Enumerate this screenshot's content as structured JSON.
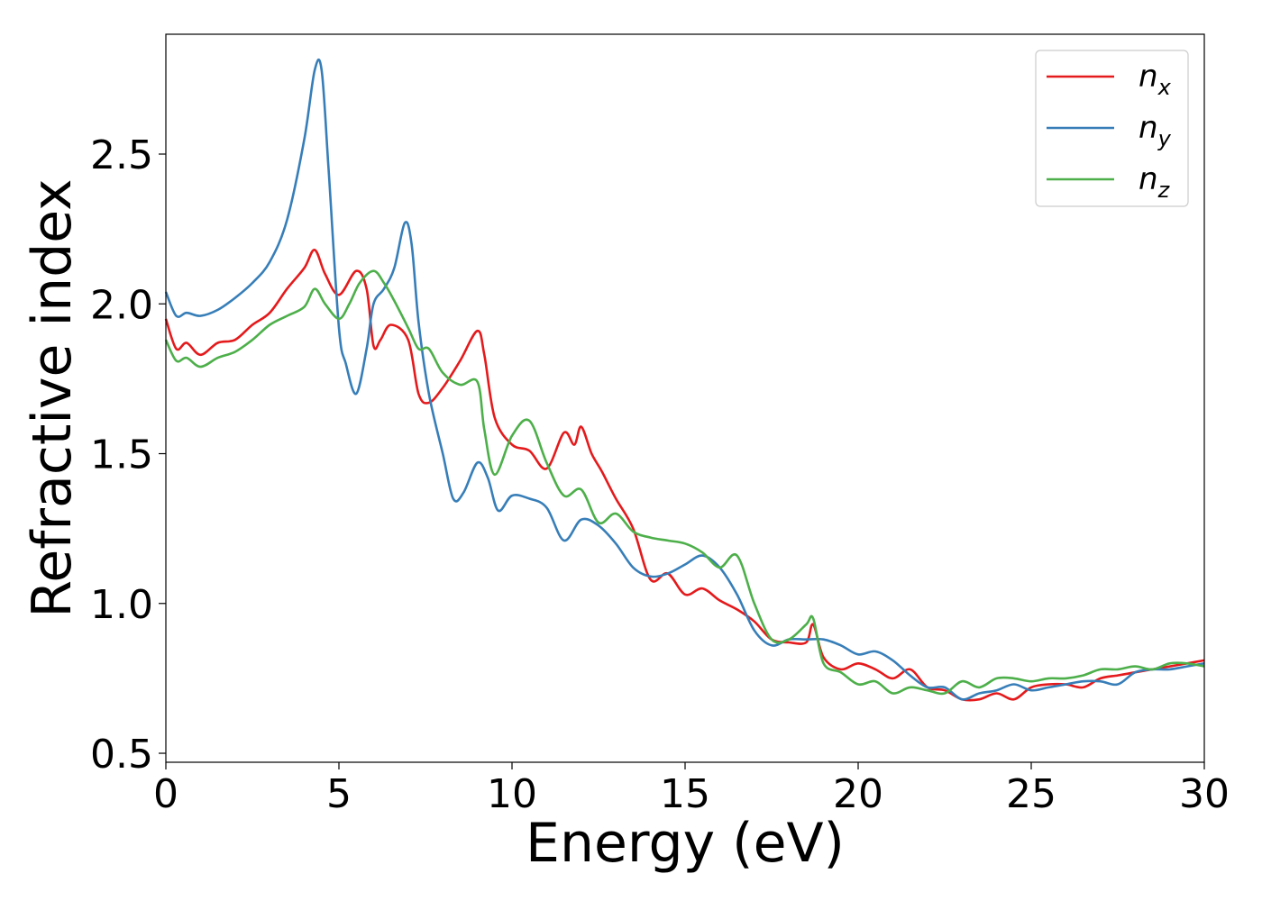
{
  "chart_data": {
    "type": "line",
    "title": "",
    "xlabel": "Energy (eV)",
    "ylabel": "Refractive index",
    "xlim": [
      0,
      30
    ],
    "ylim": [
      0.47,
      2.9
    ],
    "xticks": [
      0,
      5,
      10,
      15,
      20,
      25,
      30
    ],
    "xtick_labels": [
      "0",
      "5",
      "10",
      "15",
      "20",
      "25",
      "30"
    ],
    "yticks": [
      0.5,
      1.0,
      1.5,
      2.0,
      2.5
    ],
    "ytick_labels": [
      "0.5",
      "1.0",
      "1.5",
      "2.0",
      "2.5"
    ],
    "grid": false,
    "legend_position": "top-right",
    "series": [
      {
        "name": "n_x",
        "label_main": "n",
        "label_sub": "x",
        "color": "#e41a1c",
        "x": [
          0,
          0.3,
          0.6,
          1.0,
          1.5,
          2.0,
          2.5,
          3.0,
          3.5,
          4.0,
          4.3,
          4.6,
          5.0,
          5.5,
          5.8,
          6.0,
          6.2,
          6.5,
          7.0,
          7.3,
          7.6,
          8.0,
          8.5,
          9.0,
          9.2,
          9.5,
          10.0,
          10.5,
          11.0,
          11.5,
          11.8,
          12.0,
          12.3,
          12.6,
          13.0,
          13.5,
          14.0,
          14.5,
          15.0,
          15.5,
          16.0,
          16.5,
          17.0,
          17.5,
          18.0,
          18.5,
          18.7,
          19.0,
          19.5,
          20.0,
          20.5,
          21.0,
          21.5,
          22.0,
          22.5,
          23.0,
          23.5,
          24.0,
          24.5,
          25.0,
          25.5,
          26.0,
          26.5,
          27.0,
          27.5,
          28.0,
          28.5,
          29.0,
          29.5,
          30.0
        ],
        "y": [
          1.95,
          1.85,
          1.87,
          1.83,
          1.87,
          1.88,
          1.93,
          1.97,
          2.05,
          2.12,
          2.18,
          2.1,
          2.03,
          2.11,
          2.05,
          1.86,
          1.88,
          1.93,
          1.88,
          1.7,
          1.67,
          1.72,
          1.81,
          1.91,
          1.83,
          1.62,
          1.53,
          1.51,
          1.45,
          1.57,
          1.53,
          1.59,
          1.5,
          1.44,
          1.35,
          1.25,
          1.08,
          1.1,
          1.03,
          1.05,
          1.01,
          0.98,
          0.94,
          0.88,
          0.87,
          0.87,
          0.93,
          0.82,
          0.78,
          0.8,
          0.78,
          0.75,
          0.78,
          0.72,
          0.71,
          0.68,
          0.68,
          0.7,
          0.68,
          0.72,
          0.73,
          0.73,
          0.72,
          0.75,
          0.76,
          0.77,
          0.78,
          0.79,
          0.8,
          0.81
        ]
      },
      {
        "name": "n_y",
        "label_main": "n",
        "label_sub": "y",
        "color": "#377eb8",
        "x": [
          0,
          0.3,
          0.6,
          1.0,
          1.5,
          2.0,
          2.5,
          3.0,
          3.5,
          4.0,
          4.3,
          4.5,
          4.7,
          5.0,
          5.2,
          5.5,
          5.8,
          6.0,
          6.3,
          6.6,
          6.9,
          7.1,
          7.3,
          7.6,
          8.0,
          8.3,
          8.6,
          9.0,
          9.3,
          9.6,
          10.0,
          10.5,
          11.0,
          11.5,
          12.0,
          12.5,
          13.0,
          13.5,
          14.0,
          14.5,
          15.0,
          15.5,
          16.0,
          16.5,
          17.0,
          17.5,
          18.0,
          18.5,
          19.0,
          19.5,
          20.0,
          20.5,
          21.0,
          21.5,
          22.0,
          22.5,
          23.0,
          23.5,
          24.0,
          24.5,
          25.0,
          25.5,
          26.0,
          26.5,
          27.0,
          27.5,
          28.0,
          28.5,
          29.0,
          29.5,
          30.0
        ],
        "y": [
          2.04,
          1.96,
          1.97,
          1.96,
          1.98,
          2.02,
          2.07,
          2.14,
          2.28,
          2.55,
          2.78,
          2.78,
          2.45,
          1.92,
          1.8,
          1.7,
          1.85,
          2.0,
          2.05,
          2.12,
          2.27,
          2.2,
          1.94,
          1.7,
          1.5,
          1.35,
          1.37,
          1.47,
          1.42,
          1.31,
          1.36,
          1.35,
          1.32,
          1.21,
          1.28,
          1.26,
          1.2,
          1.12,
          1.09,
          1.1,
          1.13,
          1.16,
          1.12,
          1.03,
          0.91,
          0.86,
          0.88,
          0.88,
          0.88,
          0.86,
          0.83,
          0.84,
          0.81,
          0.76,
          0.72,
          0.72,
          0.68,
          0.7,
          0.71,
          0.73,
          0.71,
          0.72,
          0.73,
          0.74,
          0.74,
          0.73,
          0.77,
          0.78,
          0.78,
          0.79,
          0.8
        ]
      },
      {
        "name": "n_z",
        "label_main": "n",
        "label_sub": "z",
        "color": "#4daf4a",
        "x": [
          0,
          0.3,
          0.6,
          1.0,
          1.5,
          2.0,
          2.5,
          3.0,
          3.5,
          4.0,
          4.3,
          4.6,
          5.0,
          5.3,
          5.6,
          6.0,
          6.3,
          6.6,
          7.0,
          7.3,
          7.6,
          8.0,
          8.5,
          9.0,
          9.2,
          9.5,
          10.0,
          10.5,
          11.0,
          11.5,
          12.0,
          12.5,
          13.0,
          13.5,
          14.0,
          14.5,
          15.0,
          15.5,
          16.0,
          16.5,
          17.0,
          17.5,
          18.0,
          18.5,
          18.7,
          19.0,
          19.5,
          20.0,
          20.5,
          21.0,
          21.5,
          22.0,
          22.5,
          23.0,
          23.5,
          24.0,
          24.5,
          25.0,
          25.5,
          26.0,
          26.5,
          27.0,
          27.5,
          28.0,
          28.5,
          29.0,
          29.5,
          30.0
        ],
        "y": [
          1.88,
          1.81,
          1.82,
          1.79,
          1.82,
          1.84,
          1.88,
          1.93,
          1.96,
          1.99,
          2.05,
          2.0,
          1.95,
          2.0,
          2.07,
          2.11,
          2.07,
          2.01,
          1.92,
          1.85,
          1.85,
          1.77,
          1.73,
          1.74,
          1.58,
          1.43,
          1.56,
          1.61,
          1.47,
          1.36,
          1.38,
          1.27,
          1.3,
          1.24,
          1.22,
          1.21,
          1.2,
          1.17,
          1.12,
          1.16,
          1.0,
          0.88,
          0.88,
          0.93,
          0.95,
          0.8,
          0.77,
          0.73,
          0.74,
          0.7,
          0.72,
          0.71,
          0.7,
          0.74,
          0.72,
          0.75,
          0.75,
          0.74,
          0.75,
          0.75,
          0.76,
          0.78,
          0.78,
          0.79,
          0.78,
          0.8,
          0.8,
          0.79
        ]
      }
    ]
  }
}
